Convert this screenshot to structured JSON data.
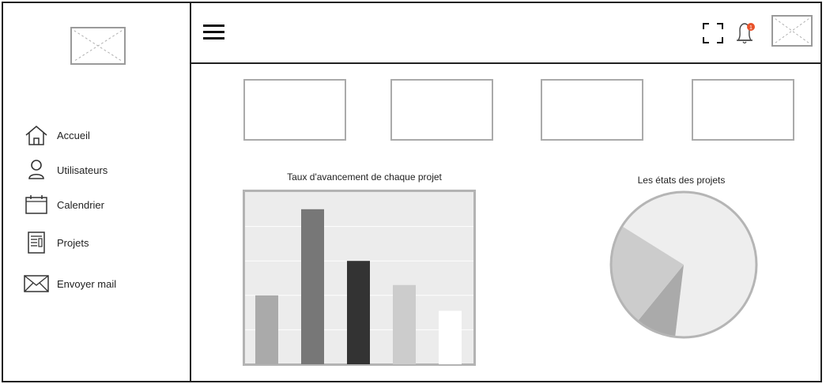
{
  "sidebar": {
    "items": [
      {
        "label": "Accueil",
        "icon": "home-icon"
      },
      {
        "label": "Utilisateurs",
        "icon": "user-icon"
      },
      {
        "label": "Calendrier",
        "icon": "calendar-icon"
      },
      {
        "label": "Projets",
        "icon": "document-icon"
      },
      {
        "label": "Envoyer mail",
        "icon": "mail-icon"
      }
    ]
  },
  "topbar": {
    "menu_icon": "hamburger-menu-icon",
    "fullscreen_icon": "fullscreen-icon",
    "notification_icon": "bell-icon",
    "notification_count": "1",
    "notification_color": "#e8522a"
  },
  "charts": {
    "bar_title": "Taux d'avancement de chaque projet",
    "pie_title": "Les états des projets"
  },
  "chart_data": [
    {
      "type": "bar",
      "title": "Taux d'avancement de chaque projet",
      "categories": [
        "",
        "",
        "",
        "",
        ""
      ],
      "values": [
        20,
        45,
        30,
        23,
        15.5
      ],
      "colors": [
        "#aaaaaa",
        "#777777",
        "#333333",
        "#cccccc",
        "#ffffff"
      ],
      "ylim": [
        0,
        50
      ],
      "grid": true
    },
    {
      "type": "pie",
      "title": "Les états des projets",
      "values": [
        68,
        9,
        23
      ],
      "colors": [
        "#eeeeee",
        "#aaaaaa",
        "#cccccc"
      ]
    }
  ]
}
